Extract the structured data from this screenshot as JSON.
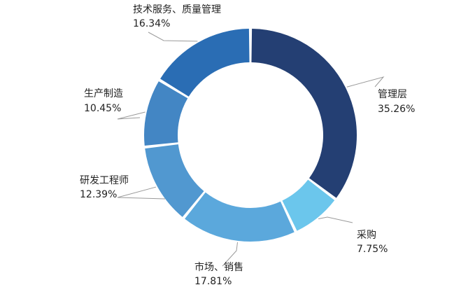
{
  "chart_data": {
    "type": "pie",
    "variant": "donut",
    "legend": "none",
    "slices": [
      {
        "name": "管理层",
        "value": 35.26,
        "label": "35.26%",
        "color": "#243f73"
      },
      {
        "name": "采购",
        "value": 7.75,
        "label": "7.75%",
        "color": "#6bc6ec"
      },
      {
        "name": "市场、销售",
        "value": 17.81,
        "label": "17.81%",
        "color": "#5ba8dc"
      },
      {
        "name": "研发工程师",
        "value": 12.39,
        "label": "12.39%",
        "color": "#5198d0"
      },
      {
        "name": "生产制造",
        "value": 10.45,
        "label": "10.45%",
        "color": "#4386c4"
      },
      {
        "name": "技术服务、质量管理",
        "value": 16.34,
        "label": "16.34%",
        "color": "#2a6db4"
      }
    ]
  }
}
